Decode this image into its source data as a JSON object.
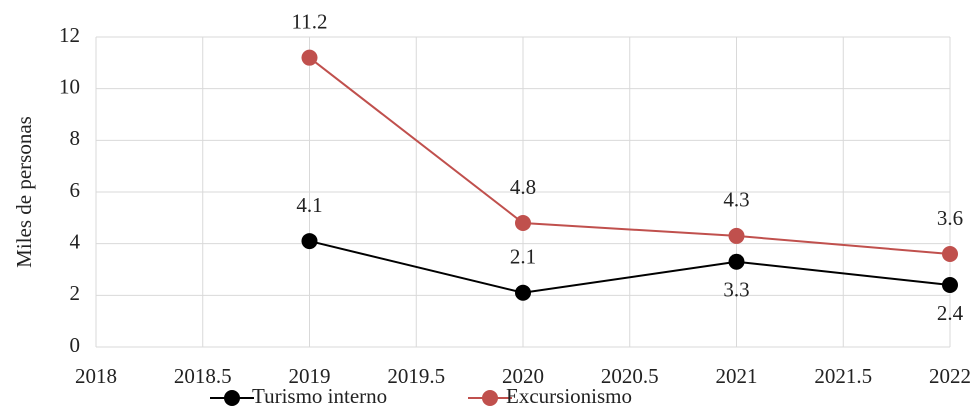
{
  "chart_data": {
    "type": "line",
    "y_label": "Miles de personas",
    "x": [
      2019,
      2020,
      2021,
      2022
    ],
    "series": [
      {
        "name": "Turismo interno",
        "color": "#000000",
        "values": [
          4.1,
          2.1,
          3.3,
          2.4
        ]
      },
      {
        "name": "Excursionismo",
        "color": "#c0504d",
        "values": [
          11.2,
          4.8,
          4.3,
          3.6
        ]
      }
    ],
    "xlim": [
      2018,
      2022
    ],
    "xticks": [
      2018,
      2018.5,
      2019,
      2019.5,
      2020,
      2020.5,
      2021,
      2021.5,
      2022
    ],
    "ylim": [
      0,
      12
    ],
    "yticks": [
      0,
      2,
      4,
      6,
      8,
      10,
      12
    ],
    "grid": true,
    "legend": "bottom"
  }
}
